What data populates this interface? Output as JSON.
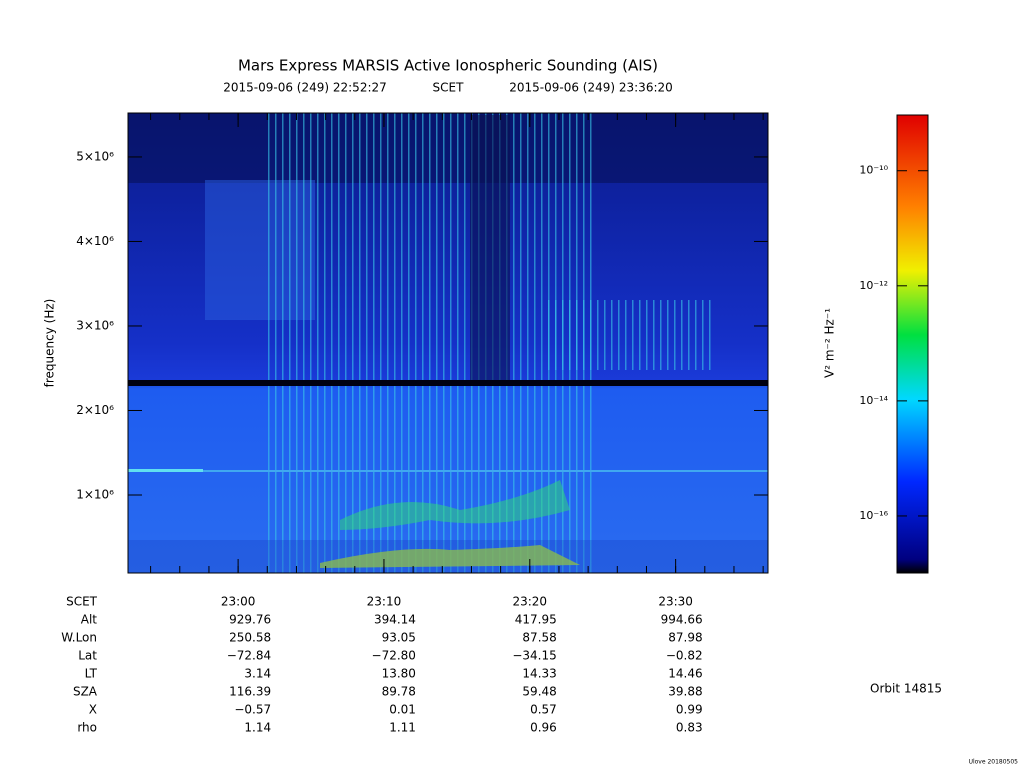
{
  "title": "Mars Express MARSIS Active Ionospheric Sounding (AIS)",
  "subtitle": {
    "start": "2015-09-06 (249) 22:52:27",
    "scale": "SCET",
    "end": "2015-09-06 (249) 23:36:20"
  },
  "y_axis": {
    "label": "frequency (Hz)",
    "lim": [
      77000,
      5520000
    ],
    "ticks": [
      {
        "value": 1000000,
        "label": "1×10⁶"
      },
      {
        "value": 2000000,
        "label": "2×10⁶"
      },
      {
        "value": 3000000,
        "label": "3×10⁶"
      },
      {
        "value": 4000000,
        "label": "4×10⁶"
      },
      {
        "value": 5000000,
        "label": "5×10⁶"
      }
    ]
  },
  "x_axis": {
    "ticks": [
      "23:00",
      "23:10",
      "23:20",
      "23:30"
    ]
  },
  "colorbar": {
    "label": "V² m⁻² Hz⁻¹",
    "log": true,
    "lim": [
      1.02e-17,
      9.3e-10
    ],
    "ticks": [
      {
        "value": 1e-10,
        "label": "10⁻¹⁰"
      },
      {
        "value": 1e-12,
        "label": "10⁻¹²"
      },
      {
        "value": 1e-14,
        "label": "10⁻¹⁴"
      },
      {
        "value": 1e-16,
        "label": "10⁻¹⁶"
      }
    ]
  },
  "table": {
    "rows": [
      {
        "label": "SCET"
      },
      {
        "label": "Alt",
        "values": [
          "929.76",
          "394.14",
          "417.95",
          "994.66"
        ]
      },
      {
        "label": "W.Lon",
        "values": [
          "250.58",
          "93.05",
          "87.58",
          "87.98"
        ]
      },
      {
        "label": "Lat",
        "values": [
          "−72.84",
          "−72.80",
          "−34.15",
          "−0.82"
        ]
      },
      {
        "label": "LT",
        "values": [
          "3.14",
          "13.80",
          "14.33",
          "14.46"
        ]
      },
      {
        "label": "SZA",
        "values": [
          "116.39",
          "89.78",
          "59.48",
          "39.88"
        ]
      },
      {
        "label": "X",
        "values": [
          "−0.57",
          "0.01",
          "0.57",
          "0.99"
        ]
      },
      {
        "label": "rho",
        "values": [
          "1.14",
          "1.11",
          "0.96",
          "0.83"
        ]
      }
    ]
  },
  "orbit": "Orbit 14815",
  "footer": "Ulove 20180505"
}
